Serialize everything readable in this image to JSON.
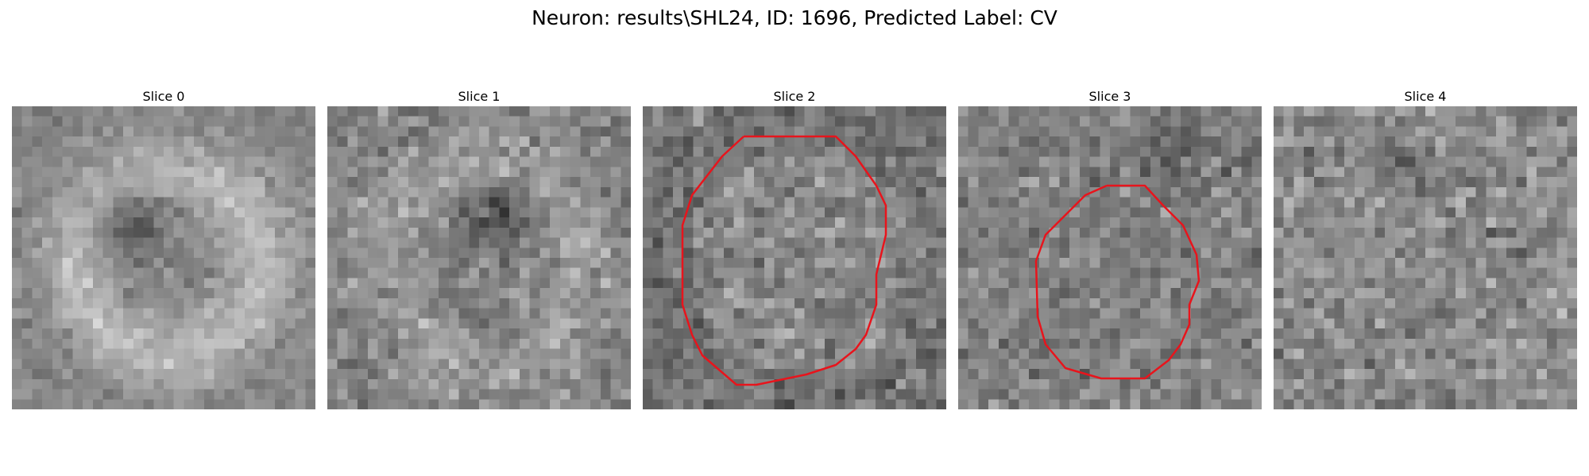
{
  "figure_title": "Neuron: results\\SHL24, ID: 1696, Predicted Label: CV",
  "colors": {
    "contour": "#e8141c",
    "background": "#ffffff"
  },
  "panels": [
    {
      "title": "Slice 0",
      "image": "grayscale-microscopy-slice",
      "contour": null
    },
    {
      "title": "Slice 1",
      "image": "grayscale-microscopy-slice",
      "contour": null
    },
    {
      "title": "Slice 2",
      "image": "grayscale-microscopy-slice",
      "contour": "red-cell-outline"
    },
    {
      "title": "Slice 3",
      "image": "grayscale-microscopy-slice",
      "contour": "red-cell-outline"
    },
    {
      "title": "Slice 4",
      "image": "grayscale-microscopy-slice",
      "contour": null
    }
  ]
}
